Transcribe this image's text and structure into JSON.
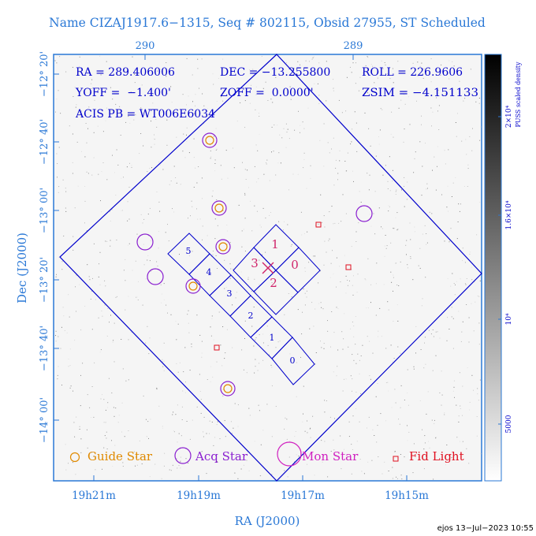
{
  "title": "Name CIZAJ1917.6−1315, Seq # 802115, Obsid 27955, ST Scheduled",
  "info_lines": {
    "ra": "RA = 289.406006",
    "dec": "DEC = −13.255800",
    "roll": "ROLL = 226.9606",
    "yoff": "YOFF =  −1.400'",
    "zoff": "ZOFF =  0.0000'",
    "zsim": "ZSIM = −4.151133",
    "acis": "ACIS PB = WT006E6034"
  },
  "top_axis_ticks": [
    "290",
    "289"
  ],
  "bottom_axis_ticks": [
    "19h21m",
    "19h19m",
    "19h17m",
    "19h15m"
  ],
  "left_axis_ticks": [
    "−12° 20'",
    "−12° 40'",
    "−13° 00'",
    "−13° 20'",
    "−13° 40'",
    "−14° 00'"
  ],
  "x_axis_label": "RA (J2000)",
  "y_axis_label": "Dec (J2000)",
  "colorbar": {
    "label": "PUSS scaled density",
    "ticks": [
      "2×10⁴",
      "1.6×10⁴",
      "10⁴",
      "5000"
    ]
  },
  "legend": {
    "guide": "Guide Star",
    "acq": "Acq Star",
    "mon": "Mon Star",
    "fid": "Fid Light"
  },
  "chips": [
    "0",
    "1",
    "2",
    "3",
    "4",
    "5"
  ],
  "hrc_chips": [
    "0",
    "1",
    "2",
    "3"
  ],
  "footer": "ejos 13−Jul−2023 10:55",
  "colors": {
    "blue": "#2a78d6",
    "navy": "#0000cc",
    "orange": "#e08a00",
    "purple": "#8a1fd0",
    "magenta": "#d020c0",
    "red": "#e01020",
    "crimson": "#d0246a"
  }
}
